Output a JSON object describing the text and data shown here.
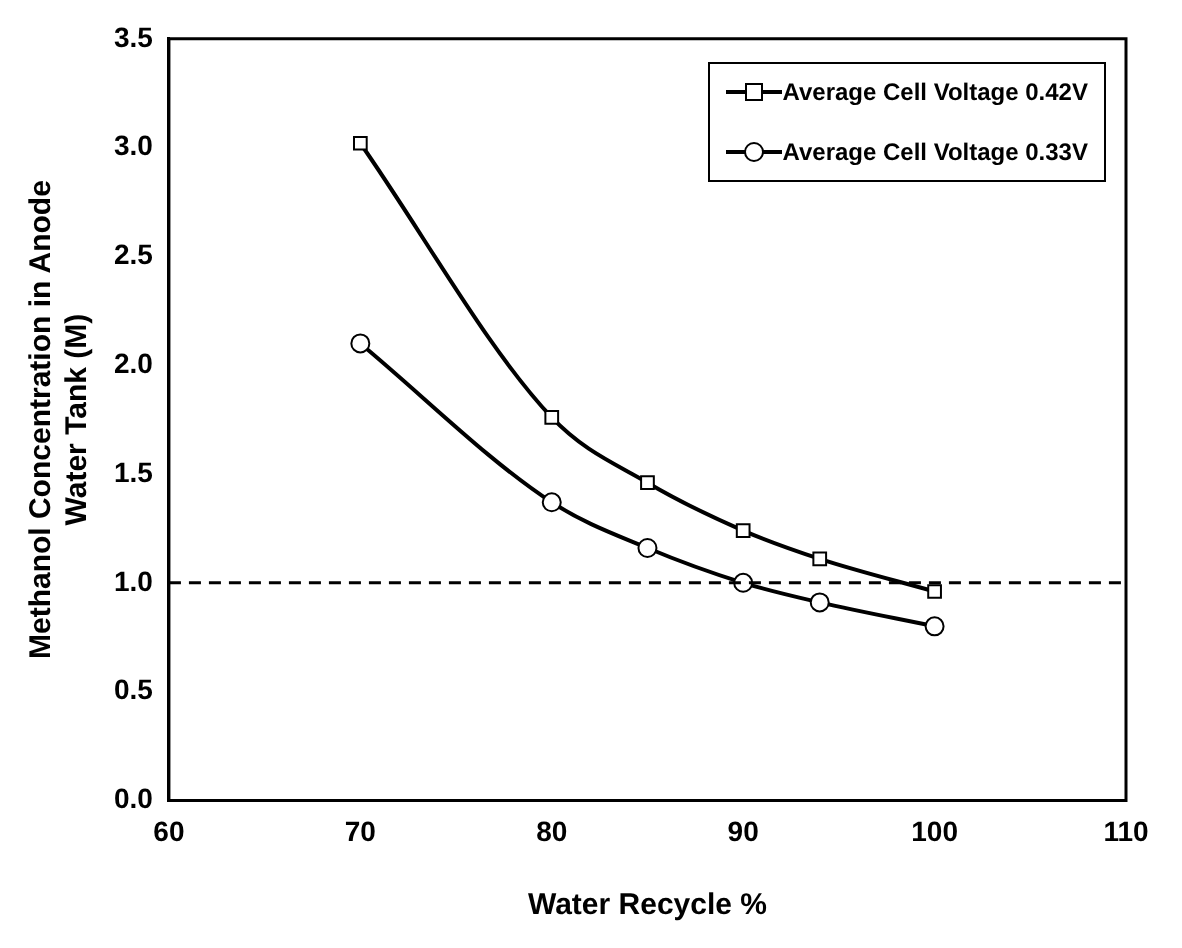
{
  "chart_data": {
    "type": "line",
    "xlabel": "Water Recycle %",
    "ylabel": "Methanol Concentration in Anode Water Tank (M)",
    "series": [
      {
        "name": "Average Cell Voltage  0.42V",
        "color": "#000000",
        "marker": "square",
        "x": [
          70,
          80,
          85,
          90,
          94,
          100
        ],
        "values": [
          3.02,
          1.76,
          1.46,
          1.24,
          1.11,
          0.96
        ]
      },
      {
        "name": "Average Cell Voltage  0.33V",
        "color": "#000000",
        "marker": "circle",
        "x": [
          70,
          80,
          85,
          90,
          94,
          100
        ],
        "values": [
          2.1,
          1.37,
          1.16,
          1.0,
          0.91,
          0.8
        ]
      }
    ],
    "xlim": [
      60,
      110
    ],
    "xticks": [
      60,
      70,
      80,
      90,
      100,
      110
    ],
    "ylim": [
      0,
      3.5
    ],
    "yticks": [
      {
        "value": 0,
        "label": "0.0"
      },
      {
        "value": 0.5,
        "label": "0.5"
      },
      {
        "value": 1,
        "label": "1.0"
      },
      {
        "value": 1.5,
        "label": "1.5"
      },
      {
        "value": 2,
        "label": "2.0"
      },
      {
        "value": 2.5,
        "label": "2.5"
      },
      {
        "value": 3,
        "label": "3.0"
      },
      {
        "value": 3.5,
        "label": "3.5"
      }
    ],
    "ref_lines": [
      {
        "axis": "y",
        "value": 1,
        "color": "#000000",
        "line_style": "dashed"
      }
    ],
    "grid": false,
    "legend": "top right"
  }
}
